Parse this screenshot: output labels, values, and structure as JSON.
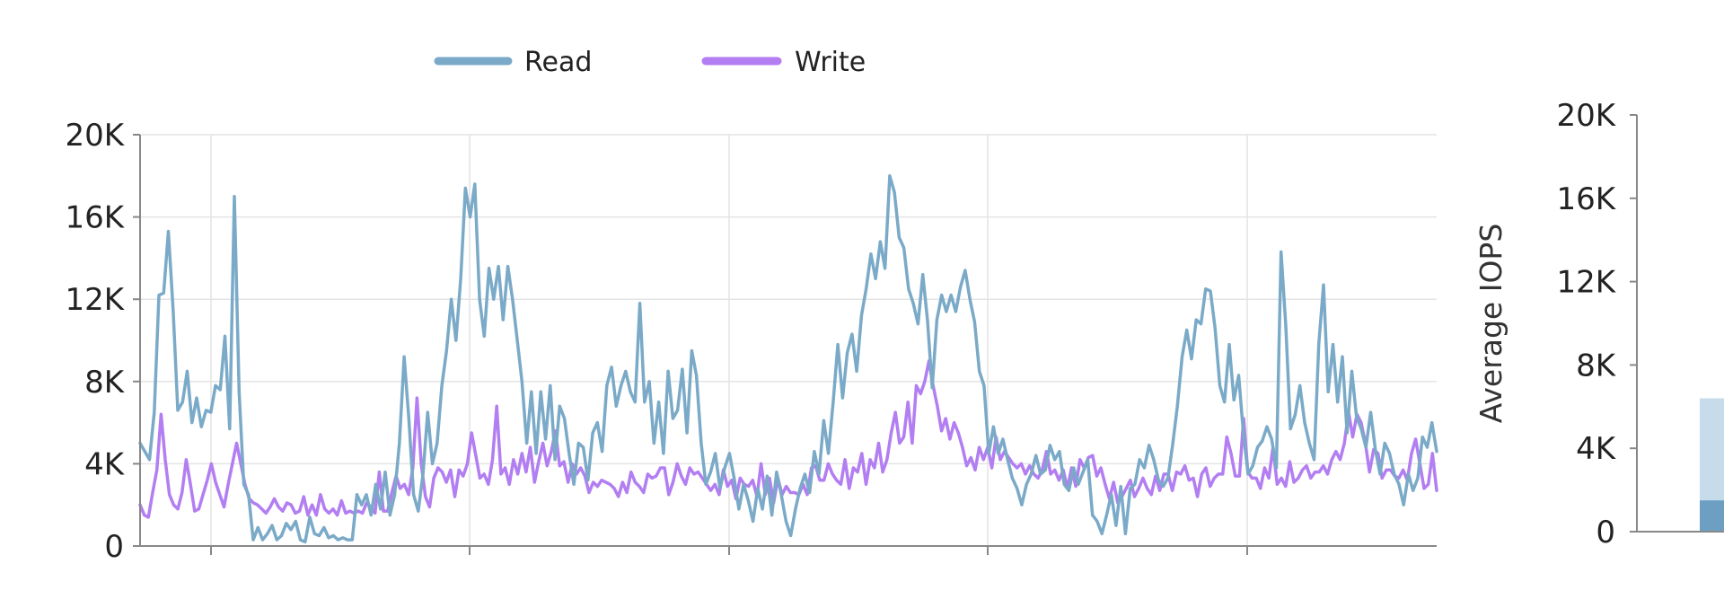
{
  "chart_data": [
    {
      "type": "line",
      "title": "",
      "xlabel": "",
      "ylabel": "",
      "ylim": [
        0,
        20000
      ],
      "yticks": [
        "0",
        "4K",
        "8K",
        "12K",
        "16K",
        "20K"
      ],
      "grid": true,
      "legend_position": "top",
      "series": [
        {
          "name": "Read",
          "color": "#7aaac8",
          "values": [
            5000,
            4600,
            4200,
            6500,
            12200,
            12300,
            15300,
            11500,
            6600,
            7000,
            8500,
            6000,
            7200,
            5800,
            6600,
            6500,
            7800,
            7600,
            10200,
            5700,
            17000,
            7500,
            3000,
            2500,
            300,
            900,
            300,
            600,
            1000,
            300,
            500,
            1100,
            800,
            1200,
            300,
            200,
            1400,
            600,
            500,
            900,
            400,
            500,
            300,
            400,
            300,
            300,
            2500,
            2000,
            2500,
            1500,
            3000,
            1800,
            3600,
            1500,
            2500,
            5000,
            9200,
            6200,
            2500,
            1700,
            3500,
            6500,
            4000,
            5000,
            7800,
            9500,
            12000,
            10000,
            13000,
            17400,
            16000,
            17600,
            12000,
            10200,
            13500,
            12000,
            13600,
            11000,
            13600,
            12000,
            10000,
            8000,
            5000,
            7500,
            4500,
            7500,
            5200,
            7800,
            4200,
            6800,
            6200,
            4500,
            3000,
            5000,
            4800,
            3200,
            5500,
            6000,
            4600,
            7800,
            8700,
            6800,
            7800,
            8500,
            7500,
            7000,
            11800,
            7000,
            8000,
            5000,
            7000,
            4500,
            8500,
            6200,
            6600,
            8600,
            5500,
            9500,
            8300,
            5000,
            3000,
            3600,
            4500,
            2800,
            3800,
            4500,
            3300,
            1800,
            3000,
            2200,
            1200,
            2800,
            1800,
            3400,
            1500,
            3600,
            2500,
            1200,
            500,
            1800,
            2800,
            3500,
            2600,
            4600,
            3500,
            6100,
            4500,
            7000,
            9800,
            7200,
            9400,
            10300,
            8500,
            11200,
            12500,
            14200,
            13000,
            14800,
            13500,
            18000,
            17200,
            15000,
            14500,
            12500,
            11800,
            10800,
            13200,
            11000,
            7700,
            11000,
            12200,
            11400,
            12200,
            11400,
            12600,
            13400,
            12000,
            10900,
            8500,
            7800,
            4500,
            5800,
            4500,
            5200,
            4200,
            3300,
            2800,
            2000,
            3000,
            3500,
            4400,
            3500,
            3700,
            4900,
            4200,
            4600,
            3000,
            2700,
            3800,
            3000,
            3600,
            4200,
            1500,
            1200,
            600,
            1500,
            2500,
            1000,
            2900,
            600,
            2800,
            3000,
            4200,
            3800,
            4900,
            4200,
            3200,
            2900,
            3300,
            4900,
            6800,
            9200,
            10500,
            9100,
            11000,
            10800,
            12500,
            12400,
            10600,
            7800,
            7000,
            9800,
            7100,
            8300,
            5500,
            3500,
            3900,
            4800,
            5100,
            5800,
            5200,
            3800,
            14300,
            10700,
            5700,
            6400,
            7800,
            6000,
            5000,
            4200,
            9800,
            12700,
            7500,
            9800,
            7000,
            9200,
            5500,
            8500,
            6300,
            5700,
            4800,
            6500,
            4700,
            3500,
            5000,
            4500,
            3500,
            3000,
            2000,
            3500,
            2700,
            3300,
            5300,
            4800,
            6000,
            4600
          ]
        },
        {
          "name": "Write",
          "color": "#b27ef2",
          "values": [
            2000,
            1500,
            1400,
            2600,
            3700,
            6400,
            4200,
            2500,
            2000,
            1800,
            2600,
            4200,
            3000,
            1700,
            1800,
            2500,
            3200,
            4000,
            3100,
            2500,
            1900,
            3000,
            4000,
            5000,
            4000,
            3000,
            2300,
            2100,
            2000,
            1800,
            1600,
            1900,
            2300,
            1900,
            1700,
            2100,
            2000,
            1600,
            1700,
            2400,
            1500,
            2000,
            1500,
            2500,
            1800,
            1600,
            1800,
            1500,
            2200,
            1600,
            1700,
            1600,
            1700,
            1600,
            2100,
            1900,
            1600,
            3600,
            1700,
            1700,
            2600,
            3400,
            2800,
            3000,
            2500,
            3800,
            7200,
            4000,
            2400,
            1900,
            3300,
            3800,
            3600,
            3100,
            3700,
            2400,
            3700,
            3400,
            4000,
            5500,
            4400,
            3300,
            3500,
            3000,
            4200,
            6800,
            3500,
            3800,
            3000,
            4200,
            3500,
            4500,
            3600,
            4800,
            3100,
            4100,
            5000,
            3900,
            4600,
            5600,
            3900,
            4100,
            3100,
            4000,
            3500,
            3800,
            3400,
            2600,
            3100,
            2900,
            3200,
            3100,
            3000,
            2800,
            2400,
            3100,
            2600,
            3600,
            3100,
            2900,
            2600,
            3500,
            3300,
            3400,
            3800,
            3800,
            2500,
            3100,
            4000,
            3400,
            3000,
            3800,
            3500,
            3600,
            3300,
            3000,
            2700,
            3000,
            2500,
            3700,
            2900,
            3200,
            2300,
            3300,
            3000,
            2900,
            3200,
            2400,
            4000,
            2500,
            3300,
            2100,
            3300,
            2500,
            2900,
            2600,
            2600,
            2500,
            3000,
            2500,
            3800,
            3900,
            3200,
            3200,
            4000,
            3500,
            3200,
            3000,
            4200,
            2800,
            3800,
            3600,
            4500,
            3000,
            4200,
            3800,
            5000,
            3600,
            4200,
            5500,
            6500,
            5000,
            5300,
            7000,
            5000,
            7800,
            7400,
            8000,
            9000,
            7800,
            6800,
            5600,
            6200,
            5200,
            6000,
            5500,
            4800,
            3900,
            4300,
            3700,
            4800,
            4200,
            4800,
            3800,
            5300,
            4200,
            4600,
            4300,
            4000,
            3800,
            4000,
            3500,
            3900,
            3500,
            3300,
            3700,
            4600,
            3500,
            3700,
            3200,
            3700,
            2800,
            3800,
            2900,
            4200,
            3800,
            4300,
            4400,
            3400,
            3800,
            3000,
            2300,
            3100,
            2100,
            2400,
            2800,
            3200,
            2400,
            2800,
            3300,
            2800,
            2500,
            3400,
            2700,
            3500,
            3500,
            2700,
            3600,
            3500,
            3900,
            3200,
            3300,
            2400,
            3500,
            3800,
            2900,
            3300,
            3500,
            3500,
            5300,
            4500,
            3400,
            3400,
            6200,
            3600,
            3300,
            3300,
            2800,
            3800,
            3300,
            4800,
            3000,
            3300,
            2900,
            4100,
            3100,
            3300,
            3700,
            3900,
            3300,
            3600,
            3600,
            3900,
            3500,
            4200,
            4600,
            4200,
            5000,
            6500,
            5300,
            6400,
            6000,
            5000,
            3600,
            4700,
            4500,
            3300,
            3700,
            3700,
            3400,
            3300,
            3700,
            3200,
            4500,
            5200,
            4000,
            2800,
            3000,
            4500,
            2700
          ]
        }
      ]
    },
    {
      "type": "bar",
      "title": "",
      "xlabel": "",
      "ylabel": "Average IOPS",
      "ylim": [
        0,
        20000
      ],
      "yticks": [
        "0",
        "4K",
        "8K",
        "12K",
        "16K",
        "20K"
      ],
      "series": [
        {
          "name": "",
          "color": "#c6dcea",
          "values": [
            6400
          ]
        },
        {
          "name": "",
          "color": "#6d9fc2",
          "values": [
            1500
          ]
        }
      ]
    }
  ]
}
